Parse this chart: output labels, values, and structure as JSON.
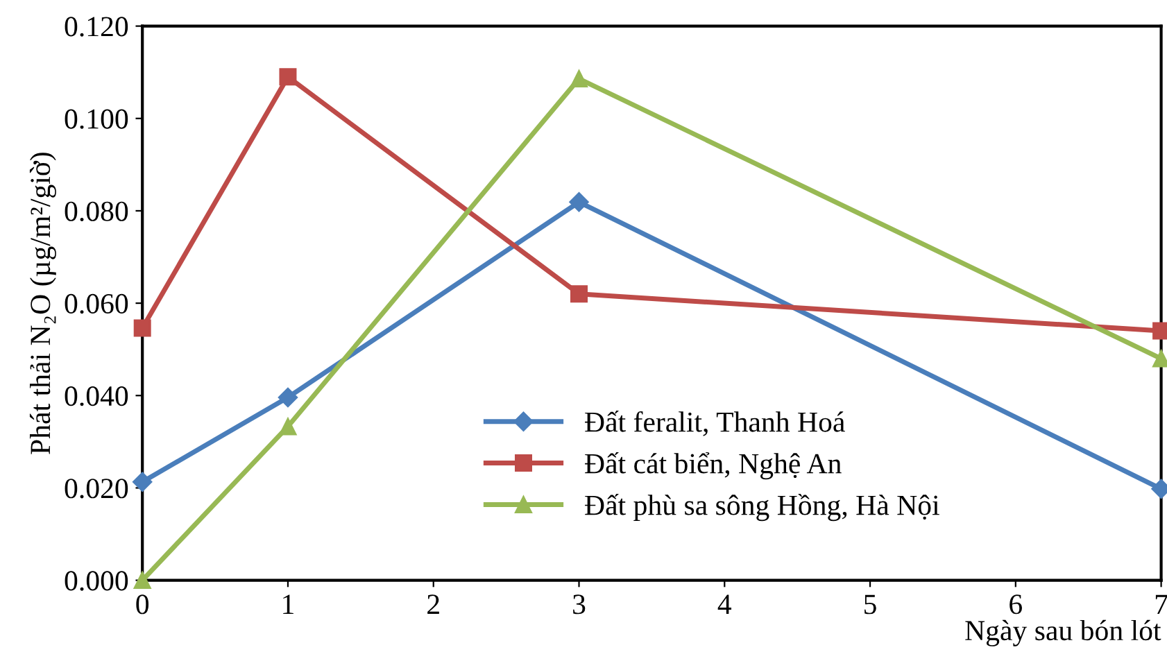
{
  "chart_data": {
    "type": "line",
    "x": [
      0,
      1,
      3,
      7
    ],
    "series": [
      {
        "name": "Đất feralit, Thanh Hoá",
        "color": "#4a7ebb",
        "marker": "diamond",
        "values": [
          0.0213,
          0.0396,
          0.0819,
          0.0198
        ]
      },
      {
        "name": "Đất cát biển, Nghệ An",
        "color": "#be4b48",
        "marker": "square",
        "values": [
          0.0546,
          0.109,
          0.062,
          0.054
        ]
      },
      {
        "name": "Đất phù sa sông Hồng, Hà Nội",
        "color": "#98b954",
        "marker": "triangle",
        "values": [
          0.0,
          0.0333,
          0.1086,
          0.048
        ]
      }
    ],
    "xlabel": "Ngày sau bón lót",
    "ylabel": "Phát thải N₂O (µg/m²/giờ)",
    "xlim": [
      0,
      7
    ],
    "xticks": [
      0,
      1,
      2,
      3,
      4,
      5,
      6,
      7
    ],
    "ylim": [
      0,
      0.12
    ],
    "yticks": [
      {
        "value": 0,
        "label": "0.000"
      },
      {
        "value": 0.02,
        "label": "0.020"
      },
      {
        "value": 0.04,
        "label": "0.040"
      },
      {
        "value": 0.06,
        "label": "0.060"
      },
      {
        "value": 0.08,
        "label": "0.080"
      },
      {
        "value": 0.1,
        "label": "0.100"
      },
      {
        "value": 0.12,
        "label": "0.120"
      }
    ],
    "grid": false,
    "legend": "bottom",
    "line_style": "solid"
  }
}
